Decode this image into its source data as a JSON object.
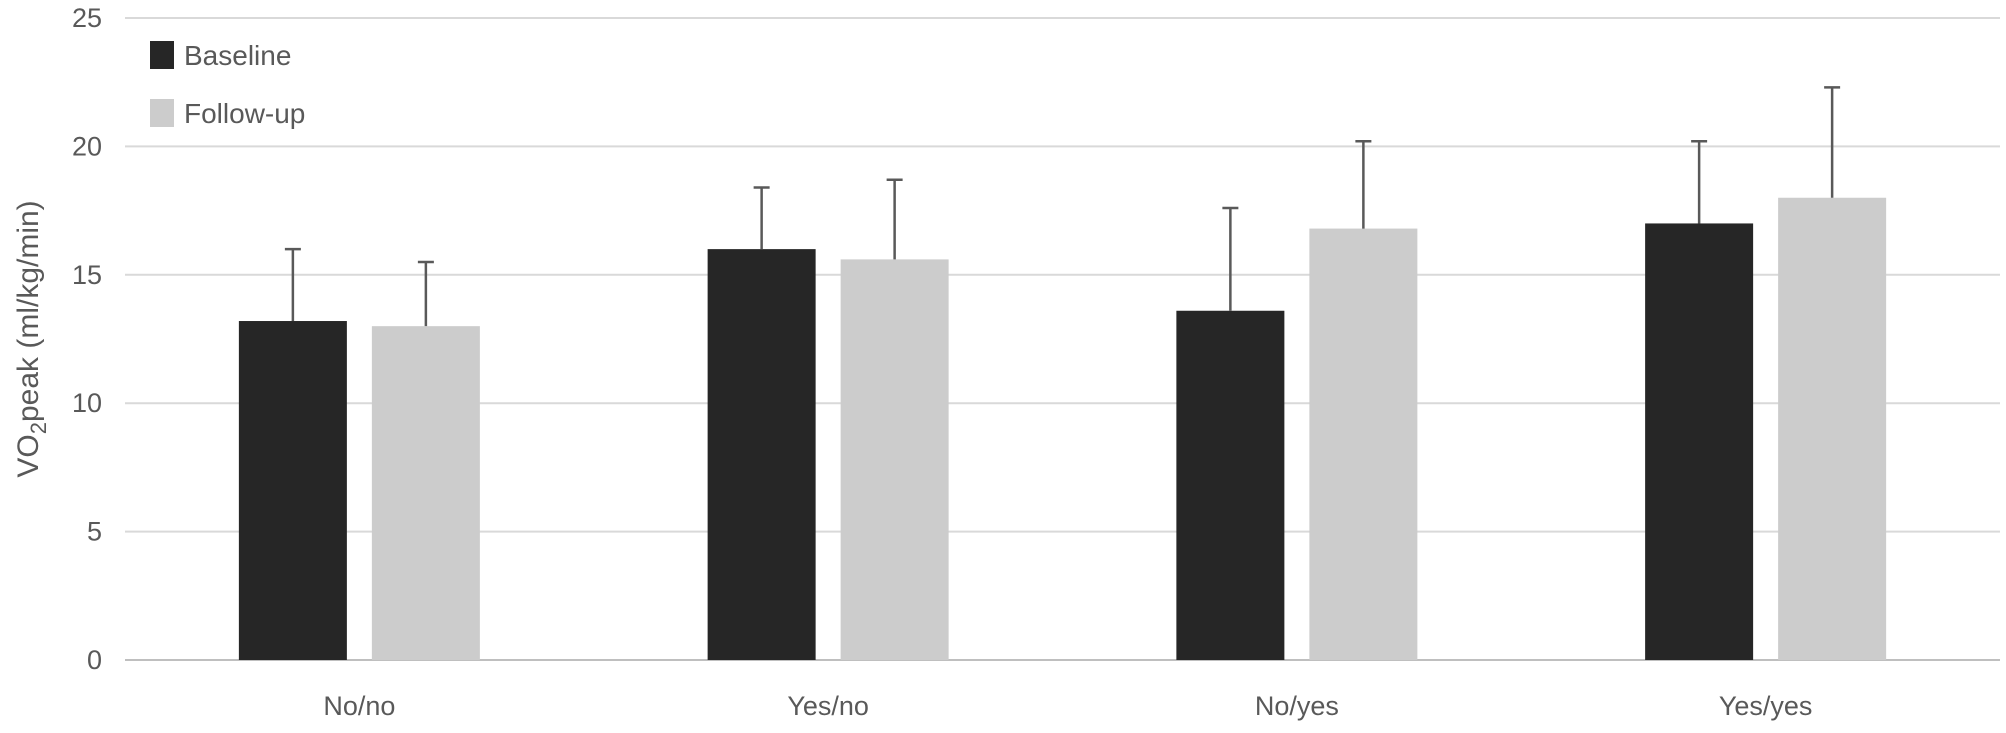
{
  "chart_data": {
    "type": "bar",
    "title": "",
    "xlabel": "",
    "ylabel": {
      "prefix": "VO",
      "subscript": "2",
      "suffix": "peak (ml/kg/min)"
    },
    "categories": [
      "No/no",
      "Yes/no",
      "No/yes",
      "Yes/yes"
    ],
    "series": [
      {
        "name": "Baseline",
        "color": "#262626",
        "values": [
          13.2,
          16.0,
          13.6,
          17.0
        ],
        "error_plus": [
          2.8,
          2.4,
          4.0,
          3.2
        ]
      },
      {
        "name": "Follow-up",
        "color": "#cccccc",
        "values": [
          13.0,
          15.6,
          16.8,
          18.0
        ],
        "error_plus": [
          2.5,
          3.1,
          3.4,
          4.3
        ]
      }
    ],
    "ylim": [
      0,
      25
    ],
    "yticks": [
      "0",
      "5",
      "10",
      "15",
      "20",
      "25"
    ],
    "grid": true,
    "legend_position": "top-left",
    "colors": {
      "grid": "#d9d9d9",
      "axis": "#bfbfbf",
      "text": "#595959",
      "error_bar": "#595959"
    }
  }
}
